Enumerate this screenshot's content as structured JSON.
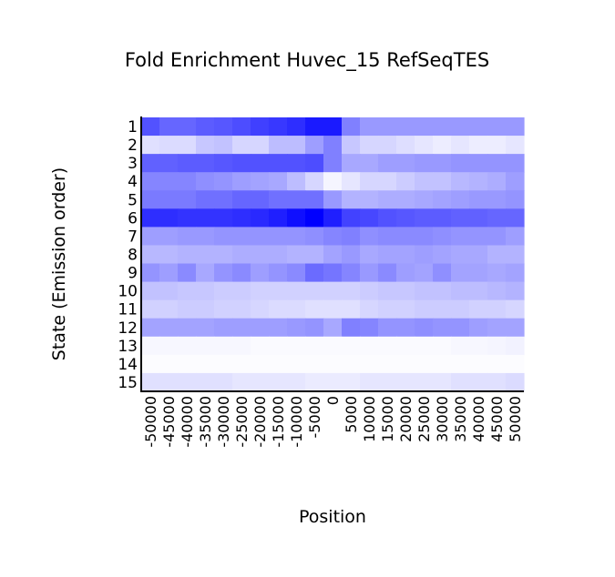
{
  "chart_data": {
    "type": "heatmap",
    "title": "Fold Enrichment Huvec_15 RefSeqTES",
    "xlabel": "Position",
    "ylabel": "State (Emission order)",
    "x_categories": [
      "-50000",
      "-45000",
      "-40000",
      "-35000",
      "-30000",
      "-25000",
      "-20000",
      "-15000",
      "-10000",
      "-5000",
      "0",
      "5000",
      "10000",
      "15000",
      "20000",
      "25000",
      "30000",
      "35000",
      "40000",
      "45000",
      "50000"
    ],
    "y_categories": [
      "1",
      "2",
      "3",
      "4",
      "5",
      "6",
      "7",
      "8",
      "9",
      "10",
      "11",
      "12",
      "13",
      "14",
      "15"
    ],
    "value_scale": "relative intensity (0 = white, 1 = full blue)",
    "colors": {
      "low": "#ffffff",
      "high": "#0000ff"
    },
    "values": [
      [
        0.68,
        0.6,
        0.6,
        0.64,
        0.66,
        0.7,
        0.75,
        0.78,
        0.82,
        0.9,
        0.9,
        0.5,
        0.4,
        0.4,
        0.4,
        0.4,
        0.4,
        0.4,
        0.4,
        0.4,
        0.4
      ],
      [
        0.12,
        0.14,
        0.14,
        0.22,
        0.24,
        0.16,
        0.16,
        0.26,
        0.26,
        0.38,
        0.5,
        0.22,
        0.16,
        0.16,
        0.13,
        0.1,
        0.07,
        0.1,
        0.07,
        0.07,
        0.1
      ],
      [
        0.62,
        0.62,
        0.64,
        0.64,
        0.66,
        0.68,
        0.68,
        0.68,
        0.68,
        0.7,
        0.5,
        0.34,
        0.34,
        0.38,
        0.38,
        0.4,
        0.4,
        0.42,
        0.42,
        0.42,
        0.42
      ],
      [
        0.48,
        0.48,
        0.48,
        0.44,
        0.42,
        0.38,
        0.36,
        0.34,
        0.26,
        0.16,
        0.04,
        0.1,
        0.16,
        0.16,
        0.2,
        0.24,
        0.24,
        0.28,
        0.3,
        0.32,
        0.38
      ],
      [
        0.52,
        0.52,
        0.52,
        0.56,
        0.56,
        0.6,
        0.6,
        0.56,
        0.56,
        0.56,
        0.4,
        0.3,
        0.3,
        0.32,
        0.32,
        0.34,
        0.36,
        0.38,
        0.4,
        0.4,
        0.42
      ],
      [
        0.82,
        0.82,
        0.8,
        0.8,
        0.8,
        0.82,
        0.84,
        0.88,
        0.94,
        1.0,
        0.88,
        0.74,
        0.72,
        0.68,
        0.66,
        0.64,
        0.64,
        0.62,
        0.62,
        0.6,
        0.6
      ],
      [
        0.38,
        0.38,
        0.4,
        0.4,
        0.42,
        0.42,
        0.42,
        0.42,
        0.42,
        0.44,
        0.48,
        0.5,
        0.44,
        0.46,
        0.46,
        0.46,
        0.44,
        0.42,
        0.42,
        0.42,
        0.38
      ],
      [
        0.28,
        0.28,
        0.3,
        0.3,
        0.3,
        0.32,
        0.32,
        0.32,
        0.3,
        0.3,
        0.36,
        0.4,
        0.34,
        0.36,
        0.36,
        0.38,
        0.36,
        0.34,
        0.34,
        0.3,
        0.3
      ],
      [
        0.42,
        0.38,
        0.46,
        0.34,
        0.42,
        0.46,
        0.38,
        0.42,
        0.46,
        0.58,
        0.54,
        0.48,
        0.4,
        0.46,
        0.38,
        0.36,
        0.44,
        0.36,
        0.36,
        0.34,
        0.36
      ],
      [
        0.24,
        0.24,
        0.22,
        0.22,
        0.2,
        0.2,
        0.18,
        0.18,
        0.18,
        0.18,
        0.18,
        0.18,
        0.2,
        0.22,
        0.22,
        0.24,
        0.24,
        0.26,
        0.26,
        0.28,
        0.3
      ],
      [
        0.18,
        0.18,
        0.2,
        0.2,
        0.18,
        0.18,
        0.16,
        0.14,
        0.14,
        0.12,
        0.12,
        0.12,
        0.16,
        0.18,
        0.18,
        0.2,
        0.2,
        0.2,
        0.18,
        0.18,
        0.16
      ],
      [
        0.36,
        0.36,
        0.36,
        0.36,
        0.38,
        0.38,
        0.38,
        0.38,
        0.4,
        0.42,
        0.34,
        0.5,
        0.48,
        0.42,
        0.42,
        0.44,
        0.42,
        0.42,
        0.38,
        0.36,
        0.36
      ],
      [
        0.03,
        0.03,
        0.03,
        0.03,
        0.03,
        0.03,
        0.02,
        0.02,
        0.02,
        0.02,
        0.02,
        0.02,
        0.02,
        0.02,
        0.02,
        0.02,
        0.02,
        0.03,
        0.03,
        0.04,
        0.05
      ],
      [
        0.01,
        0.01,
        0.01,
        0.01,
        0.01,
        0.01,
        0.01,
        0.01,
        0.01,
        0.01,
        0.01,
        0.01,
        0.01,
        0.01,
        0.01,
        0.01,
        0.01,
        0.01,
        0.01,
        0.01,
        0.01
      ],
      [
        0.12,
        0.12,
        0.12,
        0.12,
        0.12,
        0.1,
        0.1,
        0.1,
        0.1,
        0.08,
        0.08,
        0.08,
        0.1,
        0.1,
        0.1,
        0.1,
        0.1,
        0.12,
        0.12,
        0.12,
        0.14
      ]
    ]
  }
}
